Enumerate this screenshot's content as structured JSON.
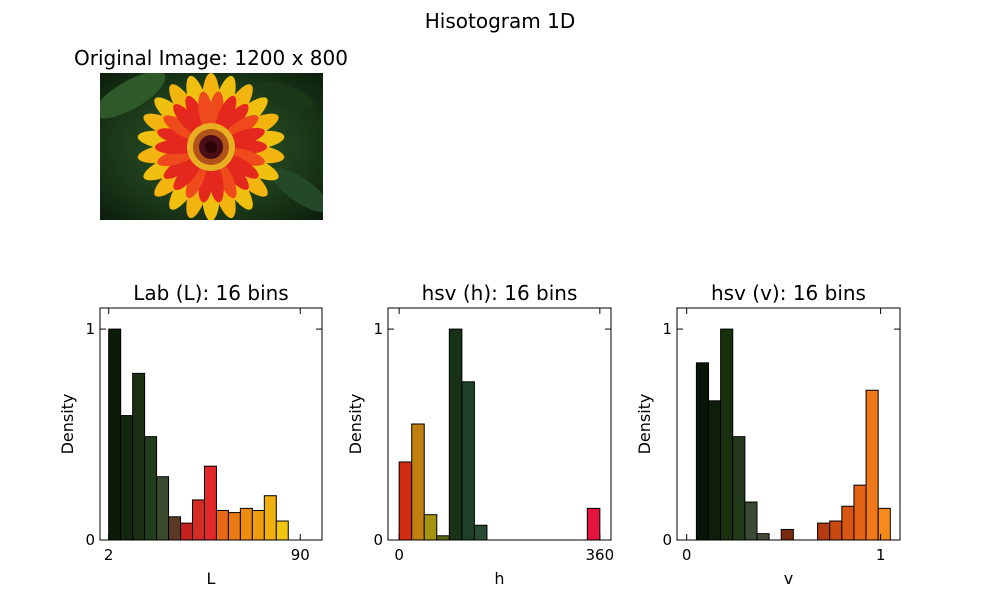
{
  "figure": {
    "suptitle": "Hisotogram 1D",
    "image_title": "Original Image: 1200 x 800"
  },
  "chart_data": [
    {
      "type": "bar",
      "title": "Lab (L): 16 bins",
      "xlabel": "L",
      "ylabel": "Density",
      "xlim": [
        -2,
        100
      ],
      "ylim": [
        0,
        1.1
      ],
      "xticks": [
        2,
        90
      ],
      "yticks": [
        0,
        1
      ],
      "bin_start": 2,
      "bin_width": 5.5,
      "values": [
        1.0,
        0.59,
        0.79,
        0.49,
        0.3,
        0.11,
        0.08,
        0.19,
        0.35,
        0.14,
        0.13,
        0.15,
        0.14,
        0.21,
        0.09,
        0.0
      ],
      "colors": [
        "#0c1a08",
        "#142810",
        "#1a2e12",
        "#213e1c",
        "#3a4a2c",
        "#5a3a24",
        "#c42020",
        "#d42c24",
        "#e22828",
        "#e86818",
        "#ea7a12",
        "#ee8c10",
        "#f09c10",
        "#f0b010",
        "#f2c412",
        "#f4d414"
      ]
    },
    {
      "type": "bar",
      "title": "hsv (h): 16 bins",
      "xlabel": "h",
      "ylabel": "Density",
      "xlim": [
        -20,
        380
      ],
      "ylim": [
        0,
        1.1
      ],
      "xticks": [
        0,
        360
      ],
      "yticks": [
        0,
        1
      ],
      "bin_start": 0,
      "bin_width": 22.5,
      "values": [
        0.37,
        0.55,
        0.12,
        0.02,
        1.0,
        0.75,
        0.07,
        0.0,
        0.0,
        0.0,
        0.0,
        0.0,
        0.0,
        0.0,
        0.0,
        0.15
      ],
      "colors": [
        "#d42c10",
        "#c08010",
        "#a49410",
        "#5a6a12",
        "#183218",
        "#1e4028",
        "#2a4a38",
        "#2a4a48",
        "#2a3a50",
        "#2a2a50",
        "#3a2a50",
        "#502a50",
        "#602a40",
        "#902a30",
        "#b02a2a",
        "#e4143c"
      ]
    },
    {
      "type": "bar",
      "title": "hsv (v): 16 bins",
      "xlabel": "v",
      "ylabel": "Density",
      "xlim": [
        -0.05,
        1.1
      ],
      "ylim": [
        0,
        1.1
      ],
      "xticks": [
        0,
        1
      ],
      "yticks": [
        0,
        1
      ],
      "bin_start": 0.05,
      "bin_width": 0.0625,
      "values": [
        0.84,
        0.66,
        1.0,
        0.49,
        0.18,
        0.03,
        0.0,
        0.05,
        0.0,
        0.0,
        0.08,
        0.09,
        0.16,
        0.26,
        0.71,
        0.15
      ],
      "colors": [
        "#081408",
        "#0e1e0a",
        "#18300e",
        "#223a1a",
        "#3a4a34",
        "#4a4a3a",
        "#5a3a20",
        "#7a2a0c",
        "#902c0c",
        "#a8300c",
        "#b83a10",
        "#c84810",
        "#d65612",
        "#e46214",
        "#f07818",
        "#f88a1c"
      ]
    }
  ]
}
